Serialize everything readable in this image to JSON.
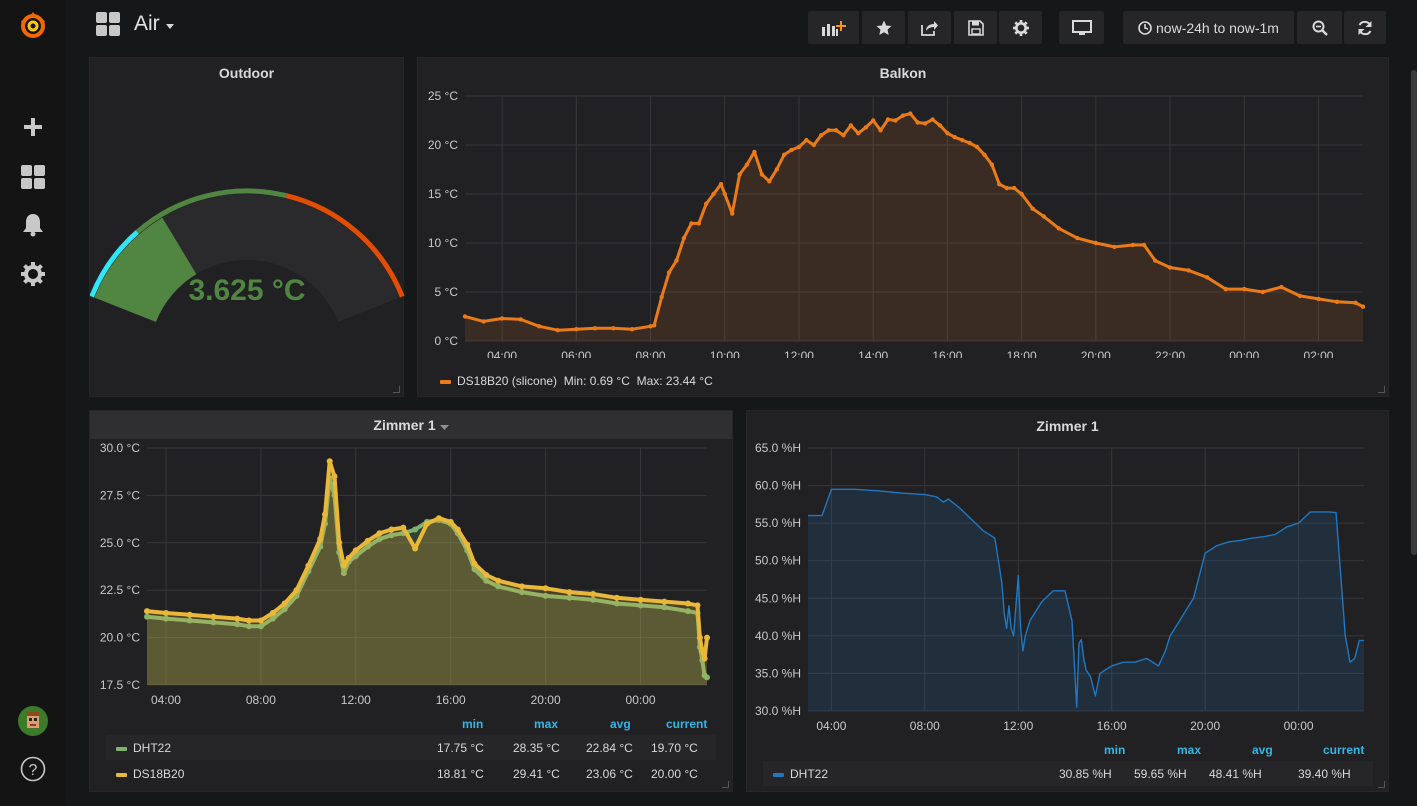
{
  "header": {
    "title": "Air",
    "time_range": "now-24h to now-1m"
  },
  "sidebar": {
    "icons": [
      "grafana-logo-icon",
      "plus-icon",
      "dashboards-icon",
      "bell-icon",
      "gear-icon",
      "avatar",
      "help-icon"
    ],
    "help_glyph": "?"
  },
  "colors": {
    "orange": "#eb7b18",
    "green": "#7eb26d",
    "yellow": "#eab839",
    "blue": "#1f78c1",
    "gauge_green": "#508642",
    "cyan": "#2ee7f9",
    "red": "#e24d06"
  },
  "panels": {
    "outdoor": {
      "title": "Outdoor",
      "value": "3.625 °C",
      "gauge": {
        "min": -10,
        "max": 40,
        "value": 3.625,
        "thresholds": [
          0,
          20
        ]
      }
    },
    "balkon": {
      "title": "Balkon",
      "legend": {
        "series": "DS18B20 (slicone)",
        "min": "Min: 0.69 °C",
        "max": "Max: 23.44 °C"
      }
    },
    "zimmer_temp": {
      "title": "Zimmer 1",
      "legend": {
        "headers": [
          "min",
          "max",
          "avg",
          "current"
        ],
        "rows": [
          {
            "name": "DHT22",
            "min": "17.75 °C",
            "max": "28.35 °C",
            "avg": "22.84 °C",
            "current": "19.70 °C"
          },
          {
            "name": "DS18B20",
            "min": "18.81 °C",
            "max": "29.41 °C",
            "avg": "23.06 °C",
            "current": "20.00 °C"
          }
        ]
      }
    },
    "zimmer_hum": {
      "title": "Zimmer 1",
      "legend": {
        "headers": [
          "min",
          "max",
          "avg",
          "current"
        ],
        "rows": [
          {
            "name": "DHT22",
            "min": "30.85 %H",
            "max": "59.65 %H",
            "avg": "48.41 %H",
            "current": "39.40 %H"
          }
        ]
      }
    }
  },
  "chart_data": [
    {
      "type": "area",
      "title": "Balkon",
      "unit": "°C",
      "ylim": [
        0,
        25
      ],
      "yticks": [
        "0 °C",
        "5 °C",
        "10 °C",
        "15 °C",
        "20 °C",
        "25 °C"
      ],
      "xlim": [
        3.0,
        27.2
      ],
      "xticks": [
        "04:00",
        "06:00",
        "08:00",
        "10:00",
        "12:00",
        "14:00",
        "16:00",
        "18:00",
        "20:00",
        "22:00",
        "00:00",
        "02:00"
      ],
      "series": [
        {
          "name": "DS18B20 (slicone)",
          "x": [
            3.0,
            3.5,
            4.0,
            4.5,
            5.0,
            5.5,
            6.0,
            6.5,
            7.0,
            7.5,
            8.0,
            8.1,
            8.3,
            8.5,
            8.7,
            8.9,
            9.1,
            9.3,
            9.5,
            9.7,
            9.9,
            10.0,
            10.2,
            10.4,
            10.6,
            10.8,
            11.0,
            11.2,
            11.4,
            11.6,
            11.8,
            12.0,
            12.2,
            12.4,
            12.6,
            12.8,
            13.0,
            13.2,
            13.4,
            13.6,
            13.8,
            14.0,
            14.2,
            14.4,
            14.6,
            14.8,
            15.0,
            15.2,
            15.4,
            15.6,
            15.8,
            16.0,
            16.2,
            16.4,
            16.6,
            16.8,
            17.0,
            17.2,
            17.4,
            17.6,
            17.8,
            18.0,
            18.3,
            18.6,
            19.0,
            19.5,
            20.0,
            20.5,
            21.0,
            21.3,
            21.6,
            22.0,
            22.5,
            23.0,
            23.5,
            24.0,
            24.5,
            25.0,
            25.5,
            26.0,
            26.5,
            27.0,
            27.2
          ],
          "y": [
            2.5,
            2.0,
            2.3,
            2.2,
            1.5,
            1.1,
            1.2,
            1.3,
            1.3,
            1.2,
            1.5,
            1.6,
            4.5,
            7.0,
            8.2,
            10.5,
            12.0,
            12.0,
            14.0,
            15.0,
            16.0,
            15.0,
            13.0,
            17.0,
            18.0,
            19.3,
            17.0,
            16.3,
            17.5,
            19.0,
            19.5,
            19.8,
            20.5,
            20.0,
            21.0,
            21.5,
            21.5,
            21.0,
            22.0,
            21.2,
            21.8,
            22.5,
            21.5,
            22.6,
            22.5,
            23.0,
            23.2,
            22.3,
            22.2,
            22.6,
            22.0,
            21.2,
            20.8,
            20.5,
            20.2,
            19.8,
            19.0,
            18.0,
            16.0,
            15.6,
            15.6,
            15.0,
            13.5,
            12.7,
            11.5,
            10.5,
            10.0,
            9.6,
            9.8,
            9.8,
            8.2,
            7.5,
            7.2,
            6.5,
            5.3,
            5.3,
            5.0,
            5.5,
            4.6,
            4.3,
            4.0,
            3.9,
            3.5
          ]
        }
      ]
    },
    {
      "type": "scatter",
      "title": "Zimmer 1",
      "unit": "°C",
      "ylim": [
        17.5,
        30
      ],
      "yticks": [
        "17.5 °C",
        "20.0 °C",
        "22.5 °C",
        "25.0 °C",
        "27.5 °C",
        "30.0 °C"
      ],
      "xlim": [
        3.2,
        26.8
      ],
      "xticks": [
        "04:00",
        "08:00",
        "12:00",
        "16:00",
        "20:00",
        "00:00"
      ],
      "series": [
        {
          "name": "DHT22",
          "x": [
            3.2,
            4.0,
            5.0,
            6.0,
            7.0,
            7.5,
            8.0,
            8.5,
            9.0,
            9.5,
            10.0,
            10.5,
            10.7,
            10.9,
            11.1,
            11.3,
            11.5,
            11.7,
            12.0,
            12.5,
            13.0,
            13.5,
            14.0,
            14.5,
            15.0,
            15.5,
            16.0,
            16.3,
            16.7,
            17.0,
            17.5,
            18.0,
            19.0,
            20.0,
            21.0,
            22.0,
            23.0,
            24.0,
            25.0,
            26.0,
            26.4,
            26.5,
            26.6,
            26.7,
            26.8
          ],
          "y": [
            21.1,
            21.0,
            20.9,
            20.8,
            20.7,
            20.6,
            20.6,
            21.0,
            21.5,
            22.2,
            23.5,
            24.8,
            26.0,
            28.4,
            27.5,
            24.5,
            23.4,
            24.0,
            24.3,
            24.8,
            25.2,
            25.4,
            25.5,
            25.7,
            26.1,
            26.2,
            26.0,
            25.5,
            24.6,
            23.6,
            23.0,
            22.7,
            22.4,
            22.2,
            22.1,
            22.0,
            21.8,
            21.7,
            21.6,
            21.4,
            21.3,
            19.5,
            18.8,
            18.0,
            17.9
          ]
        },
        {
          "name": "DS18B20",
          "x": [
            3.2,
            4.0,
            5.0,
            6.0,
            7.0,
            7.5,
            8.0,
            8.5,
            9.0,
            9.5,
            10.0,
            10.5,
            10.7,
            10.9,
            11.1,
            11.3,
            11.5,
            11.7,
            12.0,
            12.5,
            13.0,
            13.5,
            14.0,
            14.5,
            15.0,
            15.5,
            16.0,
            16.3,
            16.7,
            17.0,
            17.5,
            18.0,
            19.0,
            20.0,
            21.0,
            22.0,
            23.0,
            24.0,
            25.0,
            26.0,
            26.4,
            26.5,
            26.6,
            26.7,
            26.8
          ],
          "y": [
            21.4,
            21.3,
            21.2,
            21.1,
            21.0,
            20.9,
            20.9,
            21.3,
            21.8,
            22.5,
            23.8,
            25.2,
            26.5,
            29.3,
            28.5,
            25.0,
            23.8,
            24.2,
            24.6,
            25.1,
            25.5,
            25.7,
            25.8,
            24.7,
            26.0,
            26.3,
            26.1,
            25.7,
            24.9,
            23.9,
            23.3,
            23.0,
            22.7,
            22.6,
            22.4,
            22.3,
            22.1,
            22.0,
            21.9,
            21.8,
            21.7,
            20.0,
            19.3,
            18.9,
            20.0
          ]
        }
      ]
    },
    {
      "type": "line",
      "title": "Zimmer 1",
      "unit": "%H",
      "ylim": [
        30,
        65
      ],
      "yticks": [
        "30.0 %H",
        "35.0 %H",
        "40.0 %H",
        "45.0 %H",
        "50.0 %H",
        "55.0 %H",
        "60.0 %H",
        "65.0 %H"
      ],
      "xlim": [
        3.0,
        26.8
      ],
      "xticks": [
        "04:00",
        "08:00",
        "12:00",
        "16:00",
        "20:00",
        "00:00"
      ],
      "series": [
        {
          "name": "DHT22",
          "x": [
            3.0,
            3.6,
            4.0,
            4.5,
            5.0,
            6.0,
            7.0,
            8.0,
            8.5,
            8.8,
            9.0,
            9.5,
            10.0,
            10.5,
            11.0,
            11.3,
            11.4,
            11.5,
            11.6,
            11.7,
            11.8,
            12.0,
            12.1,
            12.2,
            12.3,
            12.5,
            13.0,
            13.5,
            14.0,
            14.3,
            14.5,
            14.6,
            14.7,
            14.8,
            14.9,
            15.0,
            15.1,
            15.3,
            15.5,
            16.0,
            16.5,
            17.0,
            17.5,
            18.0,
            18.3,
            18.5,
            19.0,
            19.5,
            20.0,
            20.5,
            21.0,
            21.5,
            22.0,
            22.5,
            23.0,
            23.5,
            24.0,
            24.5,
            25.0,
            25.3,
            25.6,
            26.0,
            26.2,
            26.4,
            26.6,
            26.8
          ],
          "y": [
            56.0,
            56.0,
            59.5,
            59.5,
            59.5,
            59.3,
            59.0,
            58.8,
            58.5,
            57.8,
            58.2,
            57.0,
            55.5,
            54.0,
            53.0,
            47.0,
            43.0,
            41.0,
            44.0,
            41.0,
            40.0,
            48.0,
            41.0,
            38.0,
            40.0,
            42.0,
            44.5,
            46.0,
            46.0,
            42.0,
            30.5,
            39.0,
            39.5,
            37.0,
            35.5,
            35.0,
            34.5,
            32.0,
            35.0,
            36.0,
            36.5,
            36.5,
            37.0,
            36.0,
            38.0,
            40.0,
            42.5,
            45.0,
            51.0,
            52.0,
            52.5,
            52.7,
            53.0,
            53.2,
            53.5,
            54.5,
            55.0,
            56.5,
            56.5,
            56.5,
            56.4,
            40.0,
            36.5,
            37.0,
            39.4,
            39.4
          ]
        }
      ]
    }
  ]
}
